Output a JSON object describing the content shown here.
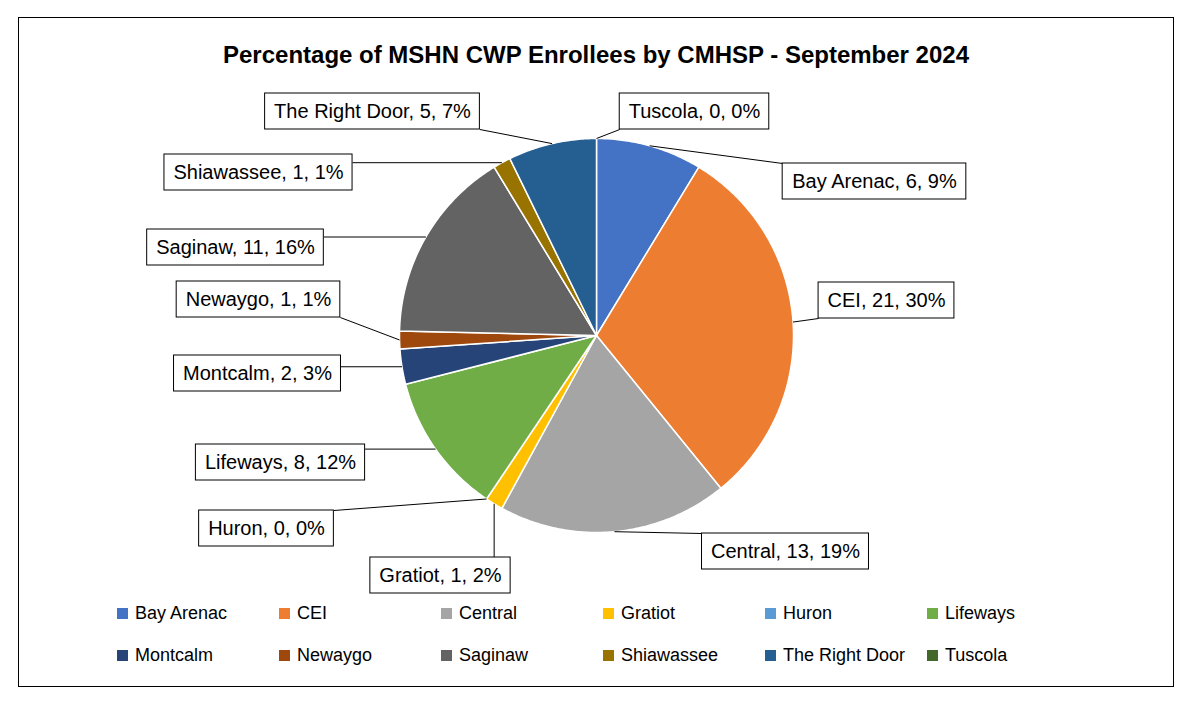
{
  "chart_data": {
    "type": "pie",
    "title": "Percentage of MSHN CWP Enrollees by CMHSP - September 2024",
    "categories": [
      "Bay Arenac",
      "CEI",
      "Central",
      "Gratiot",
      "Huron",
      "Lifeways",
      "Montcalm",
      "Newaygo",
      "Saginaw",
      "Shiawassee",
      "The Right Door",
      "Tuscola"
    ],
    "values": [
      6,
      21,
      13,
      1,
      0,
      8,
      2,
      1,
      11,
      1,
      5,
      0
    ],
    "value_labels": [
      "Bay Arenac, 6, 9%",
      "CEI, 21, 30%",
      "Central, 13, 19%",
      "Gratiot, 1, 2%",
      "Huron, 0, 0%",
      "Lifeways, 8, 12%",
      "Montcalm, 2, 3%",
      "Newaygo, 1, 1%",
      "Saginaw, 11, 16%",
      "Shiawassee, 1, 1%",
      "The Right Door, 5, 7%",
      "Tuscola, 0, 0%"
    ],
    "colors": [
      "#4472C4",
      "#ED7D31",
      "#A5A5A5",
      "#FFC000",
      "#5B9BD5",
      "#70AD47",
      "#264478",
      "#9E480E",
      "#636363",
      "#997300",
      "#255E91",
      "#43682B"
    ],
    "data_labels": true,
    "legend": "bottom"
  }
}
